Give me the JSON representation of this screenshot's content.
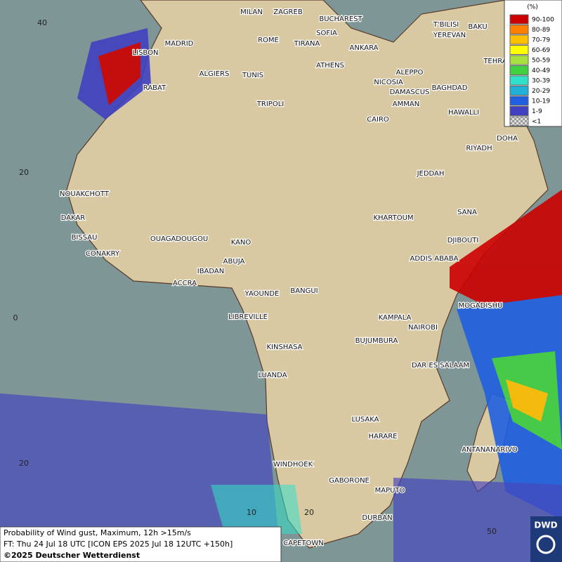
{
  "legend": {
    "title": "(%)",
    "items": [
      {
        "label": "90-100",
        "color": "#cc0000"
      },
      {
        "label": "80-89",
        "color": "#ff8000"
      },
      {
        "label": "70-79",
        "color": "#ffc000"
      },
      {
        "label": "60-69",
        "color": "#ffff00"
      },
      {
        "label": "50-59",
        "color": "#a8e040"
      },
      {
        "label": "40-49",
        "color": "#40d040"
      },
      {
        "label": "30-39",
        "color": "#30e0c8"
      },
      {
        "label": "20-29",
        "color": "#20b0d8"
      },
      {
        "label": "10-19",
        "color": "#2060e0"
      },
      {
        "label": "1-9",
        "color": "#4040c0"
      },
      {
        "label": "<1",
        "color": "#b0b0b0"
      }
    ]
  },
  "cities": [
    "MILAN",
    "ZAGREB",
    "BUCHAREST",
    "T'BILISI",
    "BAKU",
    "MADRID",
    "SOFIA",
    "YEREVAN",
    "ROME",
    "TIRANA",
    "ANKARA",
    "TEHRA",
    "LISBON",
    "ATHENS",
    "ALGIERS",
    "TUNIS",
    "ALEPPO",
    "NICOSIA",
    "BAGHDAD",
    "RABAT",
    "DAMASCUS",
    "TRIPOLI",
    "AMMAN",
    "HAWALLI",
    "CAIRO",
    "DOHA",
    "RIYADH",
    "JEDDAH",
    "NOUAKCHOTT",
    "SANA",
    "KHARTOUM",
    "DAKAR",
    "BISSAU",
    "DJIBOUTI",
    "OUAGADOUGOU",
    "KANO",
    "CONAKRY",
    "ABUJA",
    "ADDIS ABABA",
    "IBADAN",
    "ACCRA",
    "YAOUNDE",
    "BANGUI",
    "MOGADISHU",
    "LIBREVILLE",
    "KAMPALA",
    "NAIROBI",
    "KINSHASA",
    "BUJUMBURA",
    "DAR ES SALAAM",
    "LUANDA",
    "LUSAKA",
    "HARARE",
    "ANTANANARIVO",
    "WINDHOEK",
    "GABORONE",
    "MAPUTO",
    "DURBAN",
    "CAPETOWN"
  ],
  "grid_labels": {
    "lat": [
      40,
      20,
      0,
      20
    ],
    "lon": [
      10,
      20,
      50
    ]
  },
  "caption": {
    "line1": "Probability of Wind gust, Maximum, 12h >15m/s",
    "line2": "FT: Thu 24 Jul 18 UTC [ICON EPS 2025 Jul 18 12UTC +150h]",
    "line3": "©2025 Deutscher Wetterdienst"
  },
  "logo": "DWD"
}
